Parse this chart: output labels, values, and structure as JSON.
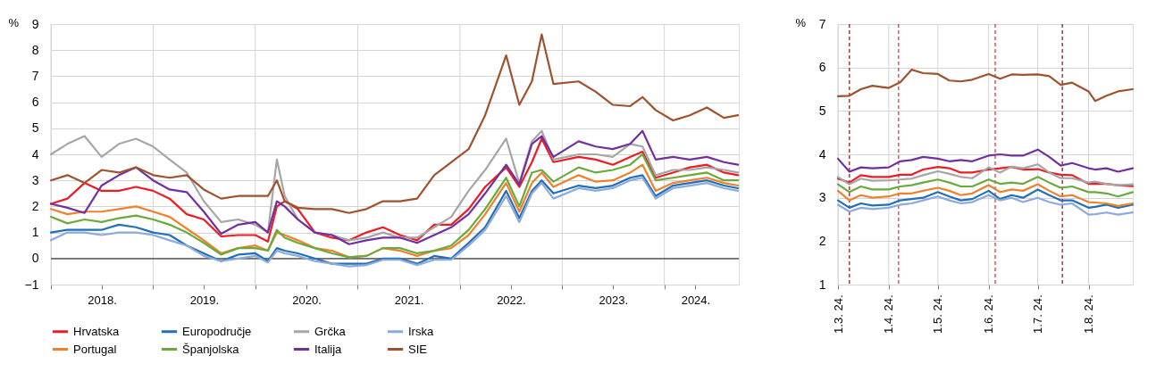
{
  "chart_data": [
    {
      "type": "line",
      "ylabel": "%",
      "x": [
        "2018-01-01",
        "2018-03-01",
        "2018-05-01",
        "2018-07-01",
        "2018-09-01",
        "2018-11-01",
        "2019-01-01",
        "2019-03-01",
        "2019-05-01",
        "2019-07-01",
        "2019-09-01",
        "2019-11-01",
        "2020-01-01",
        "2020-02-15",
        "2020-03-18",
        "2020-04-15",
        "2020-06-01",
        "2020-08-01",
        "2020-10-01",
        "2020-12-01",
        "2021-02-01",
        "2021-04-01",
        "2021-06-01",
        "2021-08-01",
        "2021-10-01",
        "2021-12-01",
        "2022-02-01",
        "2022-04-01",
        "2022-06-15",
        "2022-08-01",
        "2022-09-15",
        "2022-10-20",
        "2022-12-01",
        "2023-03-01",
        "2023-05-01",
        "2023-07-01",
        "2023-09-01",
        "2023-10-15",
        "2023-12-01",
        "2024-02-01",
        "2024-04-01",
        "2024-06-01",
        "2024-08-01",
        "2024-09-20"
      ],
      "xlim": [
        "2018-01-01",
        "2024-09-23"
      ],
      "xticks": [
        {
          "value": "2018-01-01",
          "label": null
        },
        {
          "value": "2018-07-02",
          "label": "2018."
        },
        {
          "value": "2019-01-01",
          "label": null
        },
        {
          "value": "2019-07-02",
          "label": "2019."
        },
        {
          "value": "2020-01-01",
          "label": null
        },
        {
          "value": "2020-07-02",
          "label": "2020."
        },
        {
          "value": "2021-01-01",
          "label": null
        },
        {
          "value": "2021-07-02",
          "label": "2021."
        },
        {
          "value": "2022-01-01",
          "label": null
        },
        {
          "value": "2022-07-02",
          "label": "2022."
        },
        {
          "value": "2023-01-01",
          "label": null
        },
        {
          "value": "2023-07-02",
          "label": "2023."
        },
        {
          "value": "2024-01-01",
          "label": null
        },
        {
          "value": "2024-04-21",
          "label": "2024."
        }
      ],
      "ylim": [
        -1,
        9
      ],
      "yticks": [
        {
          "value": -1,
          "label": "−1"
        },
        0,
        1,
        2,
        3,
        4,
        5,
        6,
        7,
        8,
        9
      ],
      "grid": true,
      "legend": "bottom",
      "marker": "none",
      "line_style": "solid",
      "ref_lines": [
        {
          "axis": "y",
          "value": 0,
          "color": "#404040"
        }
      ],
      "series": [
        {
          "name": "Hrvatska",
          "color": "#ed1c24",
          "values": [
            2.1,
            2.3,
            2.9,
            2.6,
            2.6,
            2.75,
            2.6,
            2.3,
            1.7,
            1.5,
            0.85,
            0.9,
            0.9,
            0.65,
            2.0,
            2.2,
            1.9,
            1.0,
            0.8,
            0.7,
            1.0,
            1.2,
            0.9,
            0.7,
            1.3,
            1.3,
            1.9,
            2.75,
            3.5,
            2.75,
            3.7,
            4.6,
            3.7,
            3.9,
            3.8,
            3.6,
            3.9,
            4.1,
            3.1,
            3.3,
            3.5,
            3.6,
            3.3,
            3.2
          ]
        },
        {
          "name": "Europodručje",
          "color": "#1f6fb9",
          "values": [
            1.0,
            1.1,
            1.1,
            1.1,
            1.3,
            1.2,
            1.0,
            0.9,
            0.5,
            0.2,
            -0.1,
            0.15,
            0.2,
            -0.1,
            0.4,
            0.3,
            0.2,
            0.0,
            -0.2,
            -0.2,
            -0.2,
            0.0,
            0.0,
            -0.2,
            0.1,
            0.0,
            0.6,
            1.2,
            2.6,
            1.55,
            2.6,
            3.0,
            2.5,
            2.8,
            2.7,
            2.8,
            3.1,
            3.2,
            2.4,
            2.8,
            2.9,
            3.0,
            2.8,
            2.7
          ]
        },
        {
          "name": "Grčka",
          "color": "#a6a6a6",
          "values": [
            4.0,
            4.4,
            4.7,
            3.9,
            4.4,
            4.6,
            4.3,
            3.8,
            3.3,
            2.2,
            1.4,
            1.5,
            1.3,
            1.0,
            3.8,
            2.4,
            1.5,
            1.0,
            0.9,
            0.7,
            0.8,
            1.0,
            0.8,
            0.8,
            1.2,
            1.6,
            2.6,
            3.4,
            4.6,
            2.9,
            4.5,
            4.9,
            3.8,
            4.0,
            4.0,
            3.9,
            4.4,
            4.3,
            3.2,
            3.4,
            3.4,
            3.5,
            3.4,
            3.3
          ]
        },
        {
          "name": "Irska",
          "color": "#8eaadb",
          "values": [
            0.7,
            1.0,
            1.0,
            0.9,
            1.0,
            1.0,
            0.9,
            0.7,
            0.5,
            0.1,
            -0.1,
            0.0,
            0.1,
            -0.15,
            0.3,
            0.2,
            0.1,
            -0.1,
            -0.2,
            -0.3,
            -0.25,
            -0.05,
            -0.05,
            -0.25,
            -0.05,
            -0.05,
            0.5,
            1.1,
            2.4,
            1.4,
            2.5,
            2.9,
            2.3,
            2.7,
            2.6,
            2.7,
            3.0,
            3.1,
            2.3,
            2.7,
            2.8,
            2.9,
            2.7,
            2.6
          ]
        },
        {
          "name": "Portugal",
          "color": "#f0812c",
          "values": [
            1.9,
            1.7,
            1.8,
            1.8,
            1.9,
            2.0,
            1.8,
            1.6,
            1.15,
            0.7,
            0.2,
            0.4,
            0.5,
            0.3,
            1.0,
            0.9,
            0.7,
            0.4,
            0.3,
            0.05,
            0.1,
            0.4,
            0.3,
            0.1,
            0.3,
            0.4,
            0.9,
            1.7,
            2.9,
            1.8,
            2.9,
            3.3,
            2.75,
            3.2,
            2.95,
            3.0,
            3.3,
            3.6,
            2.6,
            2.9,
            3.0,
            3.1,
            2.9,
            2.8
          ]
        },
        {
          "name": "Španjolska",
          "color": "#6aaa3c",
          "values": [
            1.6,
            1.35,
            1.5,
            1.4,
            1.55,
            1.65,
            1.5,
            1.3,
            1.0,
            0.6,
            0.15,
            0.4,
            0.4,
            0.3,
            1.1,
            0.8,
            0.6,
            0.4,
            0.2,
            0.05,
            0.1,
            0.4,
            0.4,
            0.2,
            0.3,
            0.5,
            1.1,
            1.9,
            3.1,
            2.0,
            3.3,
            3.4,
            2.95,
            3.5,
            3.3,
            3.4,
            3.6,
            4.0,
            3.0,
            3.1,
            3.2,
            3.3,
            3.0,
            3.0
          ]
        },
        {
          "name": "Italija",
          "color": "#7030a0",
          "values": [
            2.1,
            1.95,
            1.75,
            2.8,
            3.2,
            3.5,
            3.0,
            2.65,
            2.55,
            1.8,
            0.95,
            1.3,
            1.4,
            1.0,
            2.2,
            2.0,
            1.5,
            1.0,
            0.9,
            0.55,
            0.7,
            0.8,
            0.8,
            0.6,
            0.9,
            1.2,
            1.7,
            2.5,
            3.6,
            2.85,
            4.4,
            4.7,
            3.9,
            4.5,
            4.3,
            4.2,
            4.4,
            4.9,
            3.8,
            3.9,
            3.8,
            3.9,
            3.7,
            3.6
          ]
        },
        {
          "name": "SIE",
          "color": "#a0522d",
          "values": [
            3.0,
            3.2,
            2.9,
            3.4,
            3.3,
            3.5,
            3.2,
            3.1,
            3.2,
            2.65,
            2.3,
            2.4,
            2.4,
            2.4,
            3.0,
            2.2,
            1.95,
            1.9,
            1.9,
            1.75,
            1.9,
            2.2,
            2.2,
            2.3,
            3.2,
            3.7,
            4.2,
            5.5,
            7.8,
            5.9,
            6.8,
            8.6,
            6.7,
            6.8,
            6.4,
            5.9,
            5.85,
            6.2,
            5.7,
            5.3,
            5.5,
            5.8,
            5.4,
            5.5
          ]
        }
      ]
    },
    {
      "type": "line",
      "ylabel": "%",
      "x": [
        "2024-03-01",
        "2024-03-08",
        "2024-03-15",
        "2024-03-22",
        "2024-04-01",
        "2024-04-08",
        "2024-04-15",
        "2024-04-22",
        "2024-05-01",
        "2024-05-08",
        "2024-05-15",
        "2024-05-22",
        "2024-06-01",
        "2024-06-08",
        "2024-06-15",
        "2024-06-22",
        "2024-07-01",
        "2024-07-08",
        "2024-07-15",
        "2024-07-22",
        "2024-08-01",
        "2024-08-05",
        "2024-08-12",
        "2024-08-19",
        "2024-08-28"
      ],
      "xlim": [
        "2024-03-01",
        "2024-08-28"
      ],
      "xticks": [
        {
          "value": "2024-03-01",
          "label": "1.3. 24."
        },
        {
          "value": "2024-04-01",
          "label": "1.4. 24."
        },
        {
          "value": "2024-05-01",
          "label": "1.5. 24."
        },
        {
          "value": "2024-06-01",
          "label": "1.6. 24."
        },
        {
          "value": "2024-07-01",
          "label": "1.7. 24."
        },
        {
          "value": "2024-08-01",
          "label": "1.8. 24."
        }
      ],
      "ylim": [
        1,
        7
      ],
      "yticks": [
        1,
        2,
        3,
        4,
        5,
        6,
        7
      ],
      "grid": true,
      "legend": false,
      "marker": "none",
      "line_style": "solid",
      "ref_lines": [
        {
          "axis": "x",
          "value": "2024-03-08",
          "color": "#9b1c1c",
          "line_style": "dashed"
        },
        {
          "axis": "x",
          "value": "2024-04-07",
          "color": "#e0393e",
          "line_style": "dashed"
        },
        {
          "axis": "x",
          "value": "2024-06-05",
          "color": "#e0393e",
          "line_style": "dashed"
        },
        {
          "axis": "x",
          "value": "2024-07-16",
          "color": "#9b1c1c",
          "line_style": "dashed"
        }
      ],
      "series": [
        {
          "color": "#ed1c24",
          "values": [
            3.44,
            3.35,
            3.52,
            3.48,
            3.48,
            3.53,
            3.53,
            3.65,
            3.71,
            3.68,
            3.58,
            3.58,
            3.65,
            3.68,
            3.71,
            3.65,
            3.66,
            3.58,
            3.53,
            3.52,
            3.32,
            3.32,
            3.32,
            3.29,
            3.27
          ]
        },
        {
          "color": "#1f6fb9",
          "values": [
            2.94,
            2.77,
            2.87,
            2.82,
            2.84,
            2.94,
            2.97,
            3.0,
            3.13,
            3.03,
            2.94,
            2.97,
            3.16,
            2.97,
            3.06,
            3.0,
            3.19,
            3.06,
            2.94,
            2.94,
            2.77,
            2.79,
            2.84,
            2.77,
            2.84
          ]
        },
        {
          "color": "#a6a6a6",
          "values": [
            3.48,
            3.31,
            3.44,
            3.39,
            3.4,
            3.42,
            3.44,
            3.52,
            3.61,
            3.55,
            3.48,
            3.45,
            3.7,
            3.58,
            3.72,
            3.68,
            3.77,
            3.58,
            3.45,
            3.45,
            3.35,
            3.37,
            3.32,
            3.29,
            3.31
          ]
        },
        {
          "color": "#8eaadb",
          "values": [
            2.84,
            2.68,
            2.77,
            2.74,
            2.77,
            2.84,
            2.87,
            2.94,
            3.03,
            2.94,
            2.87,
            2.9,
            3.06,
            2.94,
            3.0,
            2.9,
            3.0,
            2.9,
            2.84,
            2.87,
            2.61,
            2.62,
            2.66,
            2.61,
            2.66
          ]
        },
        {
          "color": "#f0812c",
          "values": [
            3.16,
            2.94,
            3.06,
            3.0,
            3.03,
            3.1,
            3.1,
            3.16,
            3.23,
            3.16,
            3.06,
            3.1,
            3.29,
            3.13,
            3.19,
            3.16,
            3.31,
            3.16,
            3.03,
            3.06,
            2.9,
            2.89,
            2.87,
            2.81,
            2.87
          ]
        },
        {
          "color": "#6aaa3c",
          "values": [
            3.31,
            3.13,
            3.26,
            3.19,
            3.19,
            3.26,
            3.29,
            3.35,
            3.42,
            3.35,
            3.26,
            3.26,
            3.42,
            3.32,
            3.35,
            3.32,
            3.48,
            3.35,
            3.23,
            3.26,
            3.13,
            3.13,
            3.1,
            3.03,
            3.13
          ]
        },
        {
          "color": "#7030a0",
          "values": [
            3.9,
            3.6,
            3.7,
            3.68,
            3.7,
            3.84,
            3.87,
            3.94,
            3.9,
            3.84,
            3.87,
            3.84,
            3.97,
            4.0,
            3.97,
            3.97,
            4.11,
            3.94,
            3.74,
            3.8,
            3.68,
            3.65,
            3.68,
            3.6,
            3.68
          ]
        },
        {
          "color": "#a0522d",
          "values": [
            5.34,
            5.35,
            5.5,
            5.58,
            5.53,
            5.66,
            5.95,
            5.87,
            5.85,
            5.7,
            5.68,
            5.72,
            5.85,
            5.74,
            5.84,
            5.83,
            5.84,
            5.8,
            5.6,
            5.65,
            5.45,
            5.23,
            5.35,
            5.45,
            5.5
          ]
        }
      ]
    }
  ]
}
